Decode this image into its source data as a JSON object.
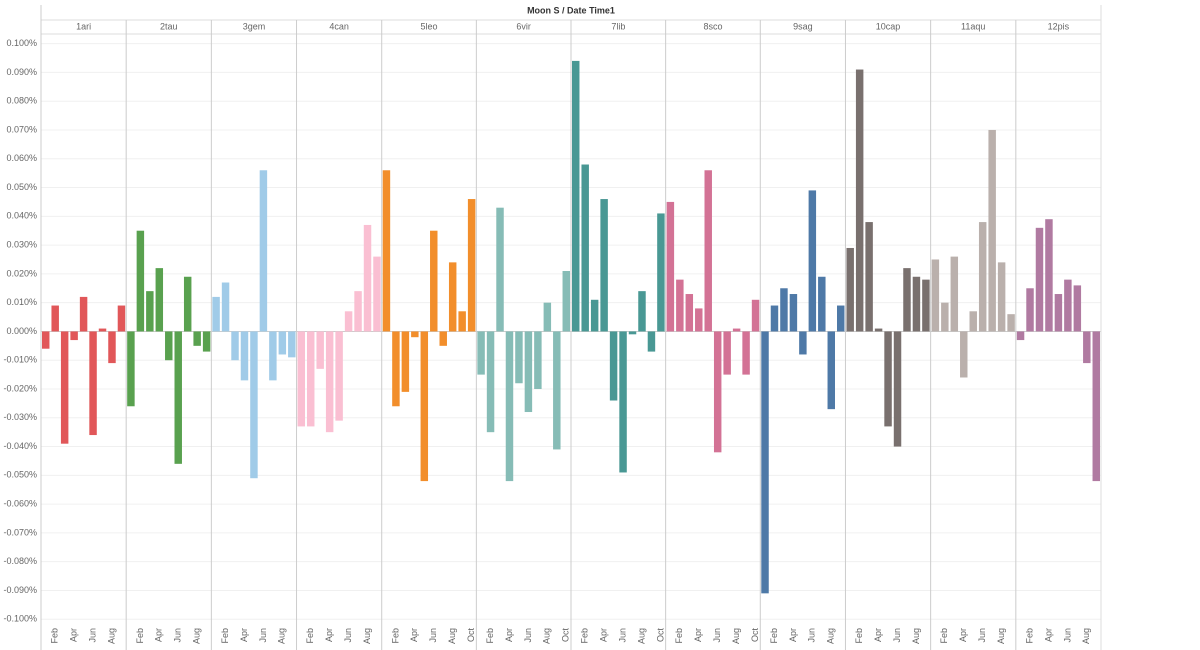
{
  "chart_data": {
    "type": "bar",
    "title": "Moon S  /  Date Time1",
    "ylim": [
      -0.102,
      0.103
    ],
    "yticks": [
      {
        "value": 0.1,
        "label": "0.100%"
      },
      {
        "value": 0.09,
        "label": "0.090%"
      },
      {
        "value": 0.08,
        "label": "0.080%"
      },
      {
        "value": 0.07,
        "label": "0.070%"
      },
      {
        "value": 0.06,
        "label": "0.060%"
      },
      {
        "value": 0.05,
        "label": "0.050%"
      },
      {
        "value": 0.04,
        "label": "0.040%"
      },
      {
        "value": 0.03,
        "label": "0.030%"
      },
      {
        "value": 0.02,
        "label": "0.020%"
      },
      {
        "value": 0.01,
        "label": "0.010%"
      },
      {
        "value": 0,
        "label": "0.000%"
      },
      {
        "value": -0.01,
        "label": "-0.010%"
      },
      {
        "value": -0.02,
        "label": "-0.020%"
      },
      {
        "value": -0.03,
        "label": "-0.030%"
      },
      {
        "value": -0.04,
        "label": "-0.040%"
      },
      {
        "value": -0.05,
        "label": "-0.050%"
      },
      {
        "value": -0.06,
        "label": "-0.060%"
      },
      {
        "value": -0.07,
        "label": "-0.070%"
      },
      {
        "value": -0.08,
        "label": "-0.080%"
      },
      {
        "value": -0.09,
        "label": "-0.090%"
      },
      {
        "value": -0.1,
        "label": "-0.100%"
      }
    ],
    "grid": true,
    "panels": [
      {
        "name": "1ari",
        "color": "#e15759",
        "categories": [
          null,
          "Feb",
          null,
          "Apr",
          null,
          "Jun",
          null,
          "Aug",
          null
        ],
        "values": [
          -0.006,
          0.009,
          -0.039,
          -0.003,
          0.012,
          -0.036,
          0.001,
          -0.011,
          0.009
        ]
      },
      {
        "name": "2tau",
        "color": "#59a14f",
        "categories": [
          null,
          "Feb",
          null,
          "Apr",
          null,
          "Jun",
          null,
          "Aug",
          null
        ],
        "values": [
          -0.026,
          0.035,
          0.014,
          0.022,
          -0.01,
          -0.046,
          0.019,
          -0.005,
          -0.007
        ]
      },
      {
        "name": "3gem",
        "color": "#a0cbe8",
        "categories": [
          null,
          "Feb",
          null,
          "Apr",
          null,
          "Jun",
          null,
          "Aug",
          null
        ],
        "values": [
          0.012,
          0.017,
          -0.01,
          -0.017,
          -0.051,
          0.056,
          -0.017,
          -0.008,
          -0.009
        ]
      },
      {
        "name": "4can",
        "color": "#fabfd2",
        "categories": [
          null,
          "Feb",
          null,
          "Apr",
          null,
          "Jun",
          null,
          "Aug",
          null
        ],
        "values": [
          -0.033,
          -0.033,
          -0.013,
          -0.035,
          -0.031,
          0.007,
          0.014,
          0.037,
          0.026
        ]
      },
      {
        "name": "5leo",
        "color": "#f28e2b",
        "categories": [
          null,
          "Feb",
          null,
          "Apr",
          null,
          "Jun",
          null,
          "Aug",
          null,
          "Oct"
        ],
        "values": [
          0.056,
          -0.026,
          -0.021,
          -0.002,
          -0.052,
          0.035,
          -0.005,
          0.024,
          0.007,
          0.046
        ]
      },
      {
        "name": "6vir",
        "color": "#86bcb6",
        "categories": [
          null,
          "Feb",
          null,
          "Apr",
          null,
          "Jun",
          null,
          "Aug",
          null,
          "Oct"
        ],
        "values": [
          -0.015,
          -0.035,
          0.043,
          -0.052,
          -0.018,
          -0.028,
          -0.02,
          0.01,
          -0.041,
          0.021
        ]
      },
      {
        "name": "7lib",
        "color": "#499894",
        "categories": [
          null,
          "Feb",
          null,
          "Apr",
          null,
          "Jun",
          null,
          "Aug",
          null,
          "Oct"
        ],
        "values": [
          0.094,
          0.058,
          0.011,
          0.046,
          -0.024,
          -0.049,
          -0.001,
          0.014,
          -0.007,
          0.041
        ]
      },
      {
        "name": "8sco",
        "color": "#d37295",
        "categories": [
          null,
          "Feb",
          null,
          "Apr",
          null,
          "Jun",
          null,
          "Aug",
          null,
          "Oct"
        ],
        "values": [
          0.045,
          0.018,
          0.013,
          0.008,
          0.056,
          -0.042,
          -0.015,
          0.001,
          -0.015,
          0.011
        ]
      },
      {
        "name": "9sag",
        "color": "#4e79a7",
        "categories": [
          null,
          "Feb",
          null,
          "Apr",
          null,
          "Jun",
          null,
          "Aug",
          null
        ],
        "values": [
          -0.091,
          0.009,
          0.015,
          0.013,
          -0.008,
          0.049,
          0.019,
          -0.027,
          0.009
        ]
      },
      {
        "name": "10cap",
        "color": "#79706e",
        "categories": [
          null,
          "Feb",
          null,
          "Apr",
          null,
          "Jun",
          null,
          "Aug",
          null
        ],
        "values": [
          0.029,
          0.091,
          0.038,
          0.001,
          -0.033,
          -0.04,
          0.022,
          0.019,
          0.018
        ]
      },
      {
        "name": "11aqu",
        "color": "#bab0ac",
        "categories": [
          null,
          "Feb",
          null,
          "Apr",
          null,
          "Jun",
          null,
          "Aug",
          null
        ],
        "values": [
          0.025,
          0.01,
          0.026,
          -0.016,
          0.007,
          0.038,
          0.07,
          0.024,
          0.006
        ]
      },
      {
        "name": "12pis",
        "color": "#b07aa1",
        "categories": [
          null,
          "Feb",
          null,
          "Apr",
          null,
          "Jun",
          null,
          "Aug",
          null
        ],
        "values": [
          -0.003,
          0.015,
          0.036,
          0.039,
          0.013,
          0.018,
          0.016,
          -0.011,
          -0.052
        ]
      }
    ]
  }
}
